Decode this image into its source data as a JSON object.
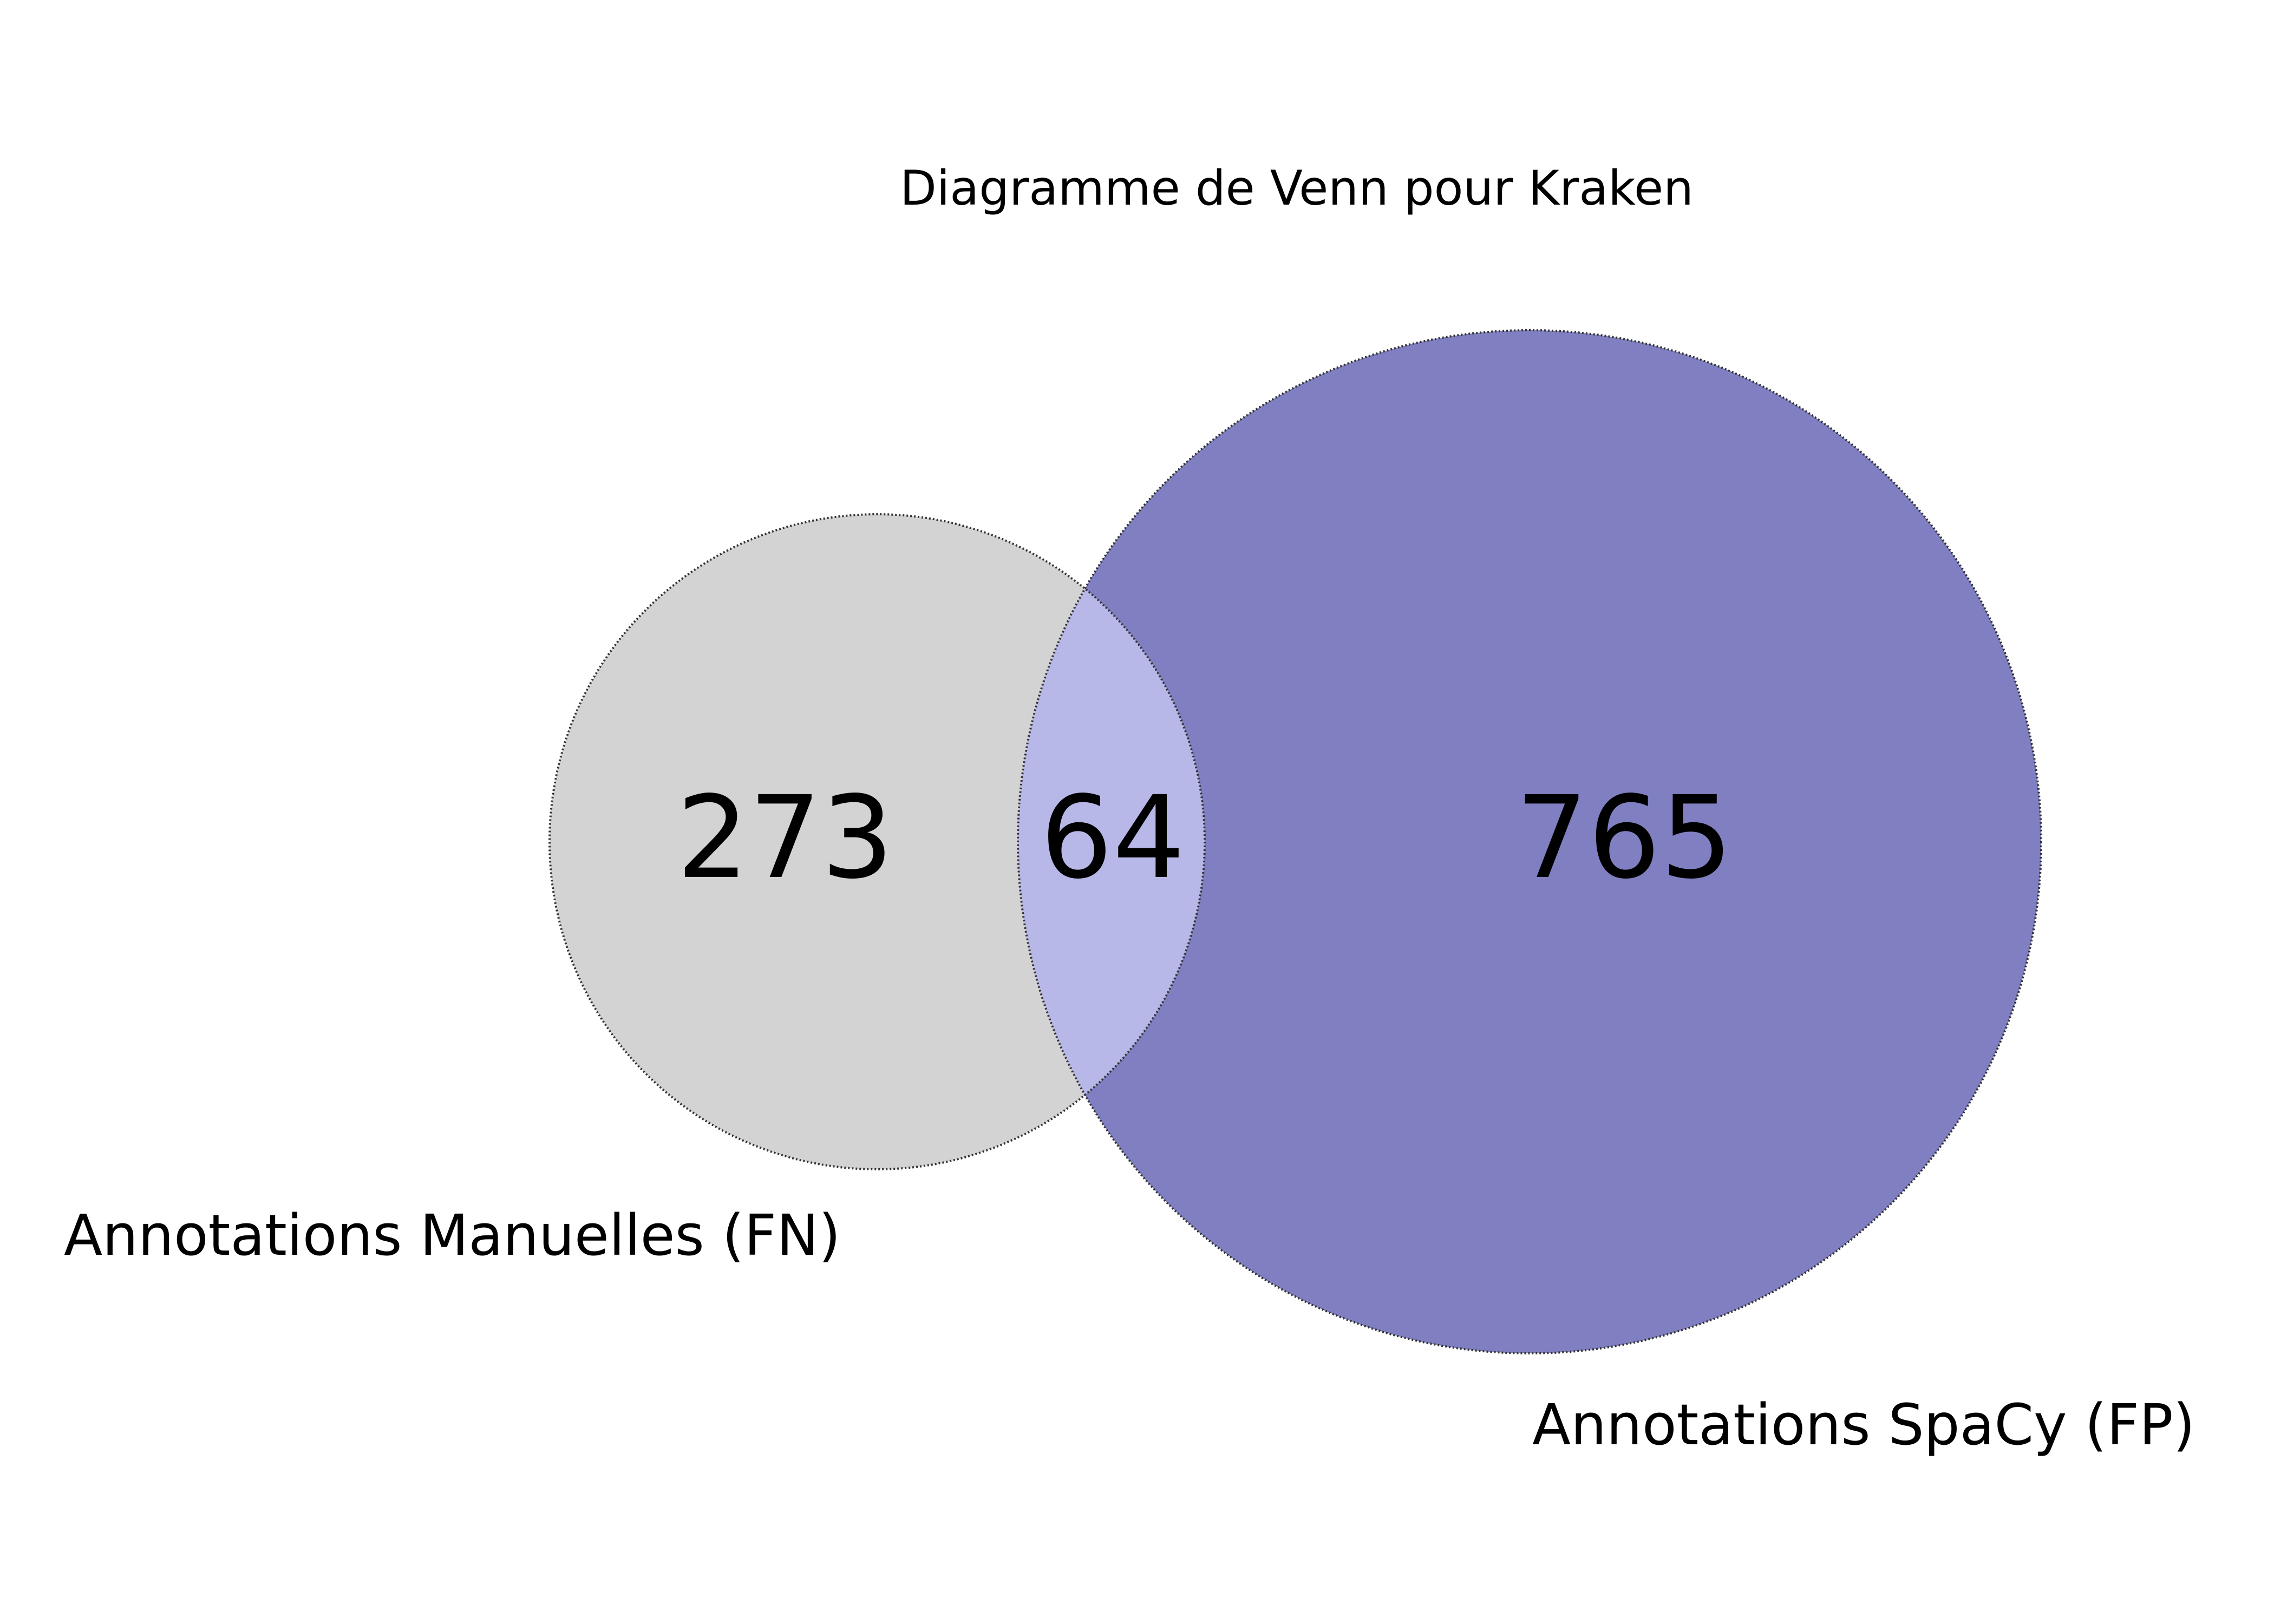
{
  "title": "Diagramme de Venn pour Kraken",
  "sets": {
    "manual": {
      "label": "Annotations Manuelles (FN)",
      "color": "#d3d3d3"
    },
    "spacy": {
      "label": "Annotations SpaCy (FP)",
      "color": "#7f7fc1"
    }
  },
  "overlap_color": "#b8b8e8",
  "regions": {
    "manual_only": "273",
    "both": "64",
    "spacy_only": "765"
  }
}
